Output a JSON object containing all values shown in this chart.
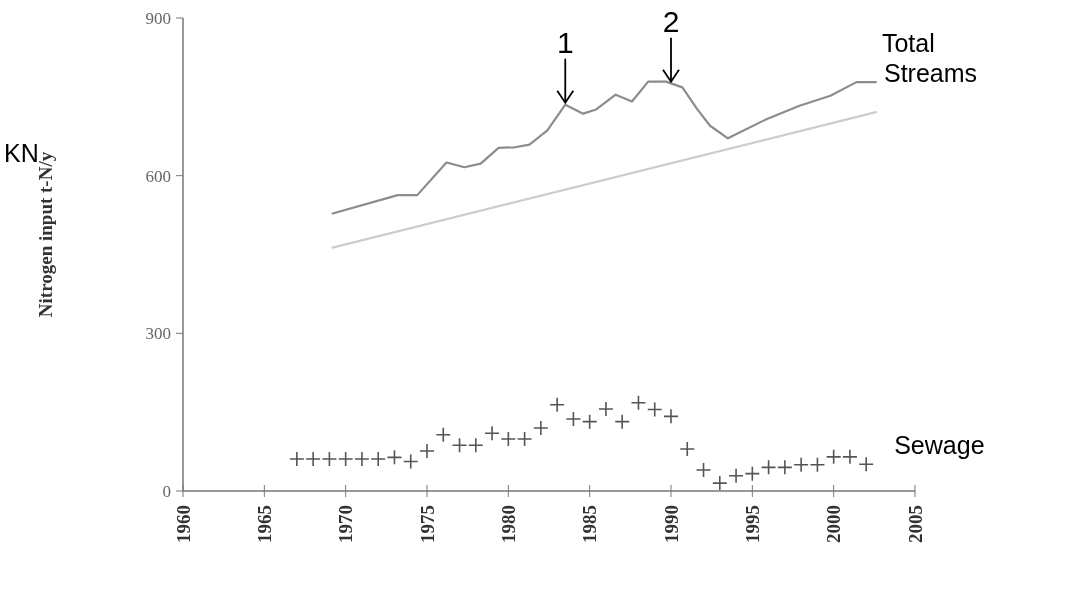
{
  "chart_data": {
    "type": "line",
    "ylabel": "Nitrogen input t-N/y",
    "xlim": [
      1960,
      2005
    ],
    "xticks": [
      1960,
      1965,
      1970,
      1975,
      1980,
      1985,
      1990,
      1995,
      2000,
      2005
    ],
    "ylim": [
      0,
      900
    ],
    "yticks": [
      0,
      300,
      600,
      900
    ],
    "grid": false,
    "series": [
      {
        "name": "Total Streams",
        "color": "#8c8c8c",
        "x": [
          1969.2,
          1973.2,
          1974.4,
          1976.2,
          1977.3,
          1978.3,
          1979.4,
          1980.4,
          1981.3,
          1982.4,
          1983.5,
          1984.6,
          1985.4,
          1986.6,
          1987.6,
          1988.6,
          1989.7,
          1990.7,
          1991.6,
          1992.4,
          1993.5,
          1995.9,
          1997.9,
          1999.8,
          2001.4,
          2002.6
        ],
        "values": [
          528,
          563,
          563,
          625,
          616,
          623,
          653,
          654,
          659,
          686,
          735,
          718,
          726,
          754,
          741,
          779,
          779,
          768,
          727,
          695,
          671,
          708,
          733,
          752,
          778,
          778
        ]
      },
      {
        "color": "#cccccc",
        "x": [
          1969.2,
          2002.6
        ],
        "values": [
          463,
          721
        ]
      },
      {
        "name": "Sewage",
        "type": "scatter",
        "marker": "cross",
        "color": "#555555",
        "x": [
          1967,
          1968,
          1969,
          1970,
          1971,
          1972,
          1973,
          1974,
          1975,
          1976,
          1977,
          1978,
          1979,
          1980,
          1981,
          1982,
          1983,
          1984,
          1985,
          1986,
          1987,
          1988,
          1989,
          1990,
          1991,
          1992,
          1993,
          1994,
          1995,
          1996,
          1997,
          1998,
          1999,
          2000,
          2001,
          2002
        ],
        "values": [
          61,
          61,
          61,
          61,
          61,
          61,
          64,
          56,
          76,
          107,
          87,
          87,
          110,
          99,
          99,
          120,
          164,
          137,
          132,
          156,
          132,
          168,
          155,
          142,
          80,
          40,
          15,
          29,
          33,
          45,
          45,
          50,
          50,
          65,
          65,
          51
        ]
      }
    ],
    "annotations": [
      {
        "text": "1",
        "x": 1983.5,
        "y": 735
      },
      {
        "text": "2",
        "x": 1990,
        "y": 775
      },
      "KN"
    ]
  }
}
